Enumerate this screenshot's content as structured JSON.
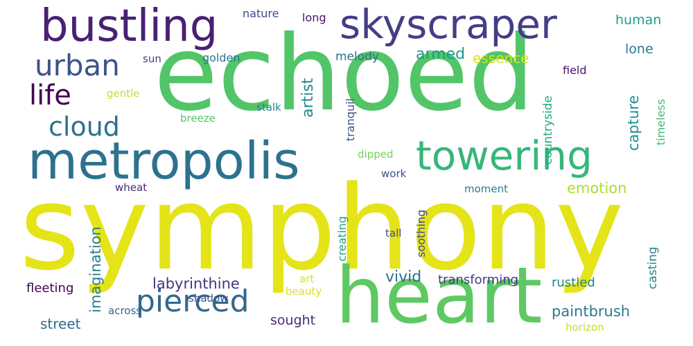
{
  "words": [
    {
      "text": "symphony",
      "color": "#e4e419",
      "rotated": false
    },
    {
      "text": "echoed",
      "color": "#52c569",
      "rotated": false
    },
    {
      "text": "heart",
      "color": "#5ec962",
      "rotated": false
    },
    {
      "text": "metropolis",
      "color": "#2c728e",
      "rotated": false
    },
    {
      "text": "bustling",
      "color": "#482173",
      "rotated": false
    },
    {
      "text": "skyscraper",
      "color": "#433e85",
      "rotated": false
    },
    {
      "text": "towering",
      "color": "#35b779",
      "rotated": false
    },
    {
      "text": "urban",
      "color": "#3b528b",
      "rotated": false
    },
    {
      "text": "pierced",
      "color": "#31688e",
      "rotated": false
    },
    {
      "text": "cloud",
      "color": "#2c728e",
      "rotated": false
    },
    {
      "text": "life",
      "color": "#440154",
      "rotated": false
    },
    {
      "text": "labyrinthine",
      "color": "#46337e",
      "rotated": false
    },
    {
      "text": "paintbrush",
      "color": "#2a788e",
      "rotated": false
    },
    {
      "text": "emotion",
      "color": "#addc30",
      "rotated": false
    },
    {
      "text": "capture",
      "color": "#218f8d",
      "rotated": true
    },
    {
      "text": "armed",
      "color": "#1f988b",
      "rotated": false
    },
    {
      "text": "essence",
      "color": "#d8e219",
      "rotated": false
    },
    {
      "text": "artist",
      "color": "#25858e",
      "rotated": true
    },
    {
      "text": "imagination",
      "color": "#287d8e",
      "rotated": true
    },
    {
      "text": "countryside",
      "color": "#22a884",
      "rotated": true
    },
    {
      "text": "human",
      "color": "#1f9e89",
      "rotated": false
    },
    {
      "text": "lone",
      "color": "#2a788e",
      "rotated": false
    },
    {
      "text": "vivid",
      "color": "#2c728e",
      "rotated": false
    },
    {
      "text": "transforming",
      "color": "#443983",
      "rotated": false
    },
    {
      "text": "street",
      "color": "#31688e",
      "rotated": false
    },
    {
      "text": "sought",
      "color": "#482878",
      "rotated": false
    },
    {
      "text": "fleeting",
      "color": "#440154",
      "rotated": false
    },
    {
      "text": "rustled",
      "color": "#277f8e",
      "rotated": false
    },
    {
      "text": "casting",
      "color": "#26828e",
      "rotated": true
    },
    {
      "text": "soothing",
      "color": "#3e4989",
      "rotated": true
    },
    {
      "text": "creating",
      "color": "#1f9e89",
      "rotated": true
    },
    {
      "text": "tranquil",
      "color": "#3b528b",
      "rotated": true
    },
    {
      "text": "timeless",
      "color": "#3dbc74",
      "rotated": true
    },
    {
      "text": "melody",
      "color": "#2e6f8e",
      "rotated": false
    },
    {
      "text": "golden",
      "color": "#2a788e",
      "rotated": false
    },
    {
      "text": "nature",
      "color": "#3e4a89",
      "rotated": false
    },
    {
      "text": "long",
      "color": "#471365",
      "rotated": false
    },
    {
      "text": "sun",
      "color": "#433e85",
      "rotated": false
    },
    {
      "text": "gentle",
      "color": "#bddf26",
      "rotated": false
    },
    {
      "text": "breeze",
      "color": "#54c568",
      "rotated": false
    },
    {
      "text": "stalk",
      "color": "#25858e",
      "rotated": false
    },
    {
      "text": "field",
      "color": "#471365",
      "rotated": false
    },
    {
      "text": "dipped",
      "color": "#75d054",
      "rotated": false
    },
    {
      "text": "work",
      "color": "#3b528b",
      "rotated": false
    },
    {
      "text": "moment",
      "color": "#2a788e",
      "rotated": false
    },
    {
      "text": "wheat",
      "color": "#482878",
      "rotated": false
    },
    {
      "text": "tall",
      "color": "#3e4989",
      "rotated": false
    },
    {
      "text": "art",
      "color": "#dde318",
      "rotated": false
    },
    {
      "text": "beauty",
      "color": "#dde318",
      "rotated": false
    },
    {
      "text": "shadow",
      "color": "#3b528b",
      "rotated": false
    },
    {
      "text": "across",
      "color": "#32648e",
      "rotated": false
    },
    {
      "text": "horizon",
      "color": "#c2df23",
      "rotated": false
    }
  ]
}
